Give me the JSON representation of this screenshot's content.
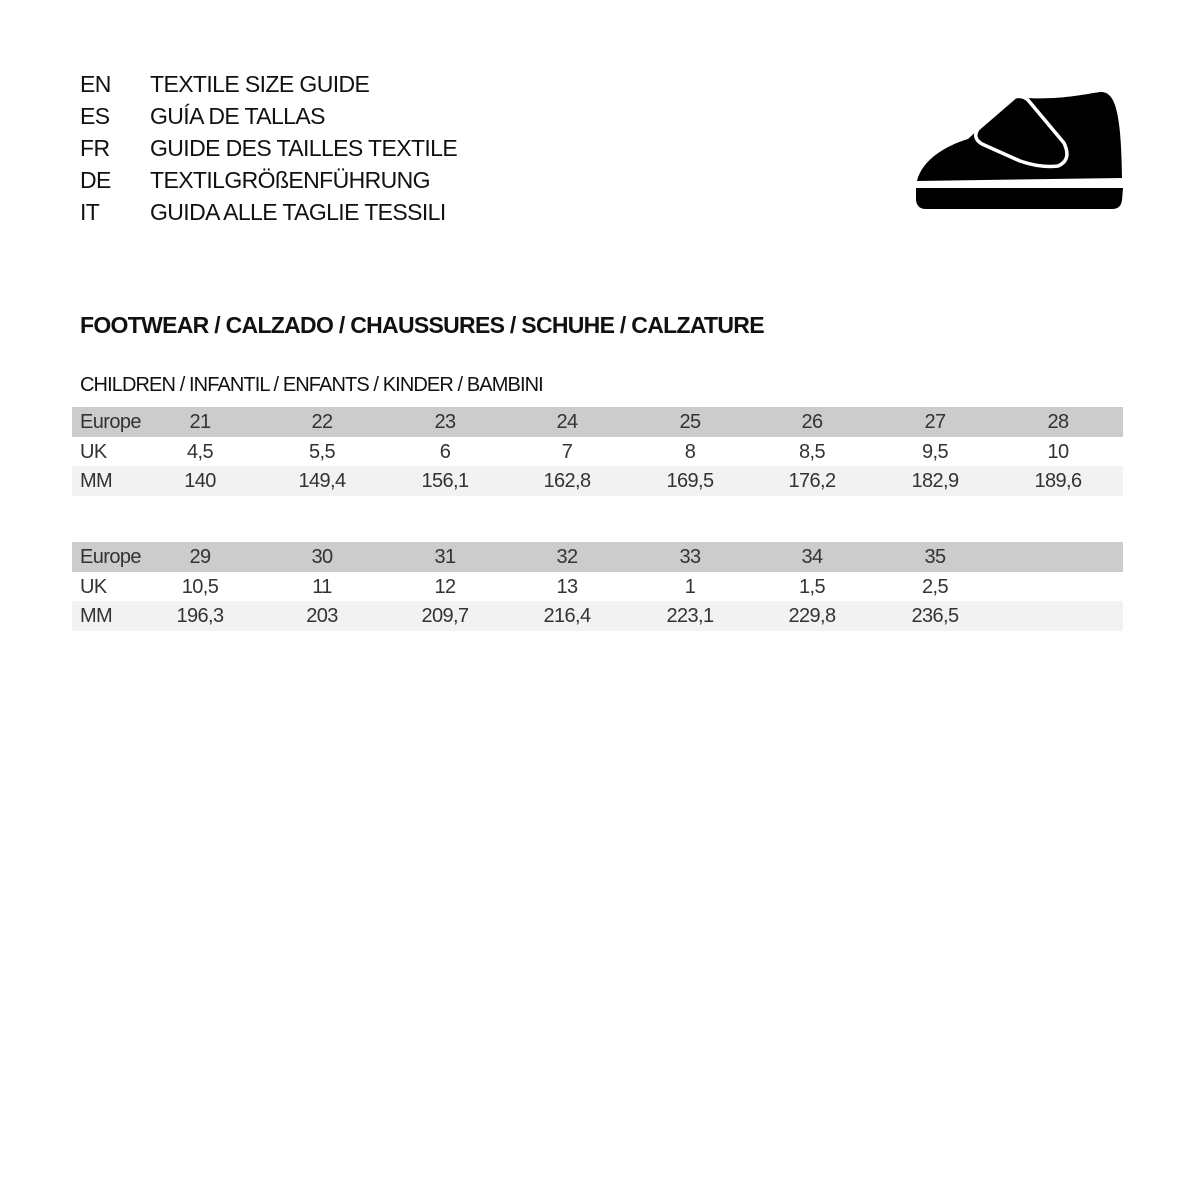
{
  "titles": [
    {
      "code": "EN",
      "text": "TEXTILE SIZE GUIDE"
    },
    {
      "code": "ES",
      "text": "GUÍA DE TALLAS"
    },
    {
      "code": "FR",
      "text": "GUIDE DES TAILLES TEXTILE"
    },
    {
      "code": "DE",
      "text": "TEXTILGRÖßENFÜHRUNG"
    },
    {
      "code": "IT",
      "text": "GUIDA ALLE TAGLIE TESSILI"
    }
  ],
  "icon": "kids-shoe-icon",
  "section_title": "FOOTWEAR / CALZADO / CHAUSSURES / SCHUHE / CALZATURE",
  "subsection_title": "CHILDREN / INFANTIL / ENFANTS / KINDER / BAMBINI",
  "tables": [
    {
      "rows": [
        {
          "label": "Europe",
          "values": [
            "21",
            "22",
            "23",
            "24",
            "25",
            "26",
            "27",
            "28"
          ]
        },
        {
          "label": "UK",
          "values": [
            "4,5",
            "5,5",
            "6",
            "7",
            "8",
            "8,5",
            "9,5",
            "10"
          ]
        },
        {
          "label": "MM",
          "values": [
            "140",
            "149,4",
            "156,1",
            "162,8",
            "169,5",
            "176,2",
            "182,9",
            "189,6"
          ]
        }
      ]
    },
    {
      "rows": [
        {
          "label": "Europe",
          "values": [
            "29",
            "30",
            "31",
            "32",
            "33",
            "34",
            "35"
          ]
        },
        {
          "label": "UK",
          "values": [
            "10,5",
            "11",
            "12",
            "13",
            "1",
            "1,5",
            "2,5"
          ]
        },
        {
          "label": "MM",
          "values": [
            "196,3",
            "203",
            "209,7",
            "216,4",
            "223,1",
            "229,8",
            "236,5"
          ]
        }
      ]
    }
  ]
}
